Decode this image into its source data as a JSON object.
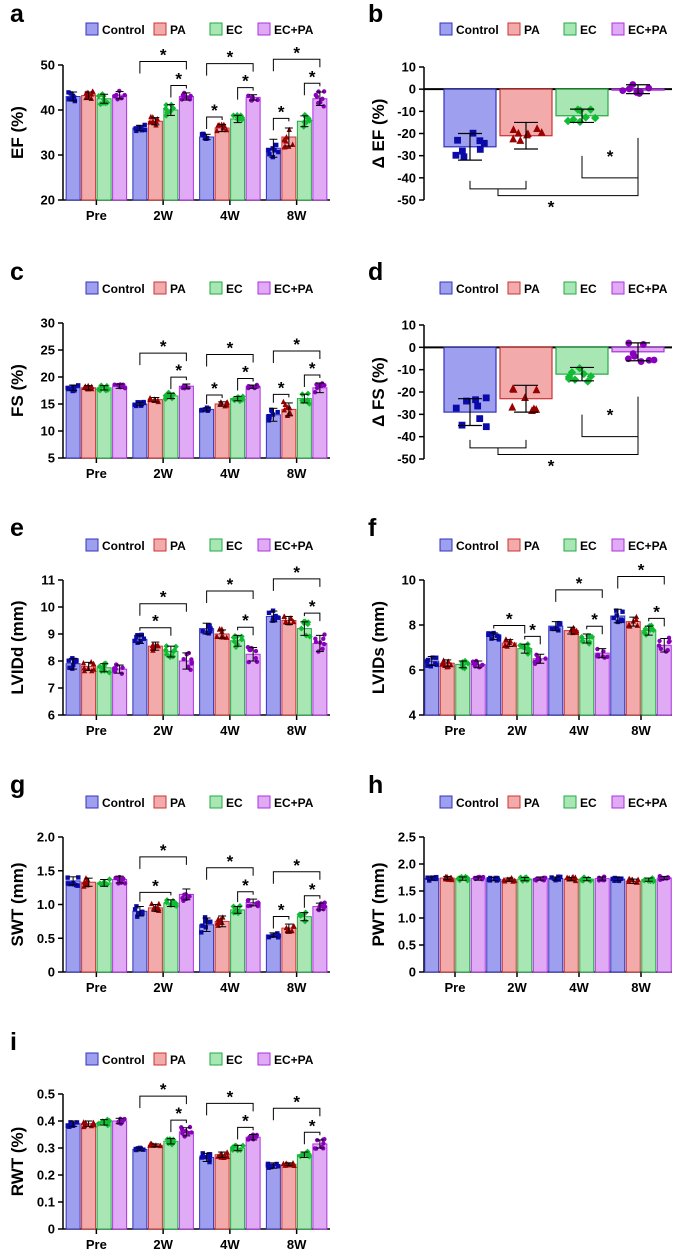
{
  "colors": {
    "Control": {
      "fill": "#9f9ff0",
      "stroke": "#3333bb",
      "marker": "#0a0aa8"
    },
    "PA": {
      "fill": "#f2aaaa",
      "stroke": "#cc3333",
      "marker": "#990000"
    },
    "EC": {
      "fill": "#a8e6b3",
      "stroke": "#22aa44",
      "marker": "#11bb33"
    },
    "EC+PA": {
      "fill": "#e1aaf5",
      "stroke": "#aa33dd",
      "marker": "#8800bb"
    }
  },
  "chart_data": [
    {
      "panel": "a",
      "type": "bar",
      "ylabel": "EF (%)",
      "categories": [
        "Pre",
        "2W",
        "4W",
        "8W"
      ],
      "legend": [
        "Control",
        "PA",
        "EC",
        "EC+PA"
      ],
      "ylim": [
        20,
        50
      ],
      "yticks": [
        20,
        30,
        40,
        50
      ],
      "ytick_labels": [
        "20",
        "30",
        "40",
        "50"
      ],
      "series": [
        {
          "name": "Control",
          "values": [
            43,
            36,
            34,
            31.5
          ],
          "errors": [
            1.0,
            0.6,
            0.6,
            2.0
          ]
        },
        {
          "name": "PA",
          "values": [
            43.2,
            37.5,
            36,
            34
          ],
          "errors": [
            0.8,
            0.8,
            0.8,
            2.0
          ]
        },
        {
          "name": "EC",
          "values": [
            42.5,
            40,
            38,
            37.5
          ],
          "errors": [
            1.0,
            1.2,
            0.8,
            1.2
          ]
        },
        {
          "name": "EC+PA",
          "values": [
            43.3,
            43,
            42.8,
            42.5
          ],
          "errors": [
            0.8,
            0.8,
            0.6,
            1.5
          ]
        }
      ],
      "stars": "*"
    },
    {
      "panel": "b",
      "type": "bar",
      "ylabel": "Δ EF (%)",
      "categories": [
        ""
      ],
      "legend": [
        "Control",
        "PA",
        "EC",
        "EC+PA"
      ],
      "ylim": [
        -50,
        10
      ],
      "yticks": [
        -50,
        -40,
        -30,
        -20,
        -10,
        0,
        10
      ],
      "ytick_labels": [
        "-50",
        "-40",
        "-30",
        "-20",
        "-10",
        "0",
        "10"
      ],
      "series": [
        {
          "name": "Control",
          "values": [
            -26
          ],
          "errors": [
            6
          ]
        },
        {
          "name": "PA",
          "values": [
            -21
          ],
          "errors": [
            6
          ]
        },
        {
          "name": "EC",
          "values": [
            -12
          ],
          "errors": [
            3
          ]
        },
        {
          "name": "EC+PA",
          "values": [
            0
          ],
          "errors": [
            2
          ]
        }
      ],
      "stars": "*"
    },
    {
      "panel": "c",
      "type": "bar",
      "ylabel": "FS (%)",
      "categories": [
        "Pre",
        "2W",
        "4W",
        "8W"
      ],
      "legend": [
        "Control",
        "PA",
        "EC",
        "EC+PA"
      ],
      "ylim": [
        5,
        30
      ],
      "yticks": [
        5,
        10,
        15,
        20,
        25,
        30
      ],
      "ytick_labels": [
        "5",
        "10",
        "15",
        "20",
        "25",
        "30"
      ],
      "series": [
        {
          "name": "Control",
          "values": [
            18,
            15,
            14,
            13
          ],
          "errors": [
            0.5,
            0.3,
            0.3,
            1.2
          ]
        },
        {
          "name": "PA",
          "values": [
            18,
            15.8,
            15,
            14
          ],
          "errors": [
            0.4,
            0.4,
            0.4,
            1.2
          ]
        },
        {
          "name": "EC",
          "values": [
            18,
            16.5,
            16,
            16
          ],
          "errors": [
            0.4,
            0.5,
            0.4,
            0.8
          ]
        },
        {
          "name": "EC+PA",
          "values": [
            18.3,
            18.3,
            18.2,
            18
          ],
          "errors": [
            0.4,
            0.4,
            0.3,
            0.9
          ]
        }
      ],
      "stars": "*"
    },
    {
      "panel": "d",
      "type": "bar",
      "ylabel": "Δ FS (%)",
      "categories": [
        ""
      ],
      "legend": [
        "Control",
        "PA",
        "EC",
        "EC+PA"
      ],
      "ylim": [
        -50,
        10
      ],
      "yticks": [
        -50,
        -40,
        -30,
        -20,
        -10,
        0,
        10
      ],
      "ytick_labels": [
        "-50",
        "-40",
        "-30",
        "-20",
        "-10",
        "0",
        "10"
      ],
      "series": [
        {
          "name": "Control",
          "values": [
            -29
          ],
          "errors": [
            6
          ]
        },
        {
          "name": "PA",
          "values": [
            -23
          ],
          "errors": [
            6
          ]
        },
        {
          "name": "EC",
          "values": [
            -12
          ],
          "errors": [
            3
          ]
        },
        {
          "name": "EC+PA",
          "values": [
            -2
          ],
          "errors": [
            4
          ]
        }
      ],
      "stars": "*"
    },
    {
      "panel": "e",
      "type": "bar",
      "ylabel": "LVIDd (mm)",
      "categories": [
        "Pre",
        "2W",
        "4W",
        "8W"
      ],
      "legend": [
        "Control",
        "PA",
        "EC",
        "EC+PA"
      ],
      "ylim": [
        6,
        11
      ],
      "yticks": [
        6,
        7,
        8,
        9,
        10,
        11
      ],
      "ytick_labels": [
        "6",
        "7",
        "8",
        "9",
        "10",
        "11"
      ],
      "series": [
        {
          "name": "Control",
          "values": [
            7.9,
            8.8,
            9.2,
            9.65
          ],
          "errors": [
            0.2,
            0.15,
            0.2,
            0.2
          ]
        },
        {
          "name": "PA",
          "values": [
            7.8,
            8.55,
            9.0,
            9.5
          ],
          "errors": [
            0.15,
            0.15,
            0.15,
            0.15
          ]
        },
        {
          "name": "EC",
          "values": [
            7.75,
            8.35,
            8.75,
            9.2
          ],
          "errors": [
            0.15,
            0.2,
            0.2,
            0.25
          ]
        },
        {
          "name": "EC+PA",
          "values": [
            7.7,
            8.0,
            8.25,
            8.65
          ],
          "errors": [
            0.15,
            0.3,
            0.25,
            0.3
          ]
        }
      ],
      "stars": "*"
    },
    {
      "panel": "f",
      "type": "bar",
      "ylabel": "LVIDs (mm)",
      "categories": [
        "Pre",
        "2W",
        "4W",
        "8W"
      ],
      "legend": [
        "Control",
        "PA",
        "EC",
        "EC+PA"
      ],
      "ylim": [
        4,
        10
      ],
      "yticks": [
        4,
        6,
        8,
        10
      ],
      "ytick_labels": [
        "4",
        "6",
        "8",
        "10"
      ],
      "series": [
        {
          "name": "Control",
          "values": [
            6.4,
            7.5,
            7.95,
            8.4
          ],
          "errors": [
            0.2,
            0.15,
            0.2,
            0.3
          ]
        },
        {
          "name": "PA",
          "values": [
            6.3,
            7.2,
            7.75,
            8.15
          ],
          "errors": [
            0.15,
            0.15,
            0.15,
            0.2
          ]
        },
        {
          "name": "EC",
          "values": [
            6.25,
            6.95,
            7.4,
            7.75
          ],
          "errors": [
            0.15,
            0.2,
            0.2,
            0.2
          ]
        },
        {
          "name": "EC+PA",
          "values": [
            6.25,
            6.5,
            6.75,
            7.1
          ],
          "errors": [
            0.15,
            0.2,
            0.2,
            0.3
          ]
        }
      ],
      "stars": "*"
    },
    {
      "panel": "g",
      "type": "bar",
      "ylabel": "SWT (mm)",
      "categories": [
        "Pre",
        "2W",
        "4W",
        "8W"
      ],
      "legend": [
        "Control",
        "PA",
        "EC",
        "EC+PA"
      ],
      "ylim": [
        0,
        2.0
      ],
      "yticks": [
        0,
        0.5,
        1.0,
        1.5,
        2.0
      ],
      "ytick_labels": [
        "0",
        "0.5",
        "1.0",
        "1.5",
        "2.0"
      ],
      "series": [
        {
          "name": "Control",
          "values": [
            1.35,
            0.9,
            0.7,
            0.55
          ],
          "errors": [
            0.06,
            0.07,
            0.1,
            0.03
          ]
        },
        {
          "name": "PA",
          "values": [
            1.33,
            0.95,
            0.75,
            0.65
          ],
          "errors": [
            0.06,
            0.05,
            0.08,
            0.06
          ]
        },
        {
          "name": "EC",
          "values": [
            1.32,
            1.02,
            0.92,
            0.82
          ],
          "errors": [
            0.05,
            0.05,
            0.05,
            0.06
          ]
        },
        {
          "name": "EC+PA",
          "values": [
            1.37,
            1.15,
            1.03,
            0.97
          ],
          "errors": [
            0.05,
            0.08,
            0.05,
            0.05
          ]
        }
      ],
      "stars": "*"
    },
    {
      "panel": "h",
      "type": "bar",
      "ylabel": "PWT (mm)",
      "categories": [
        "Pre",
        "2W",
        "4W",
        "8W"
      ],
      "legend": [
        "Control",
        "PA",
        "EC",
        "EC+PA"
      ],
      "ylim": [
        0,
        2.5
      ],
      "yticks": [
        0,
        0.5,
        1.0,
        1.5,
        2.0,
        2.5
      ],
      "ytick_labels": [
        "0",
        "0.5",
        "1.0",
        "1.5",
        "2.0",
        "2.5"
      ],
      "series": [
        {
          "name": "Control",
          "values": [
            1.73,
            1.72,
            1.73,
            1.72
          ],
          "errors": [
            0.03,
            0.03,
            0.03,
            0.03
          ]
        },
        {
          "name": "PA",
          "values": [
            1.74,
            1.71,
            1.72,
            1.68
          ],
          "errors": [
            0.03,
            0.03,
            0.03,
            0.04
          ]
        },
        {
          "name": "EC",
          "values": [
            1.73,
            1.72,
            1.72,
            1.71
          ],
          "errors": [
            0.03,
            0.03,
            0.03,
            0.03
          ]
        },
        {
          "name": "EC+PA",
          "values": [
            1.73,
            1.73,
            1.73,
            1.74
          ],
          "errors": [
            0.03,
            0.03,
            0.03,
            0.03
          ]
        }
      ],
      "stars": "*"
    },
    {
      "panel": "i",
      "type": "bar",
      "ylabel": "RWT (%)",
      "categories": [
        "Pre",
        "2W",
        "4W",
        "8W"
      ],
      "legend": [
        "Control",
        "PA",
        "EC",
        "EC+PA"
      ],
      "ylim": [
        0,
        0.5
      ],
      "yticks": [
        0,
        0.1,
        0.2,
        0.3,
        0.4,
        0.5
      ],
      "ytick_labels": [
        "0",
        "0.1",
        "0.2",
        "0.3",
        "0.4",
        "0.5"
      ],
      "series": [
        {
          "name": "Control",
          "values": [
            0.39,
            0.295,
            0.265,
            0.235
          ],
          "errors": [
            0.01,
            0.005,
            0.015,
            0.01
          ]
        },
        {
          "name": "PA",
          "values": [
            0.39,
            0.31,
            0.275,
            0.24
          ],
          "errors": [
            0.01,
            0.005,
            0.01,
            0.005
          ]
        },
        {
          "name": "EC",
          "values": [
            0.395,
            0.325,
            0.3,
            0.275
          ],
          "errors": [
            0.01,
            0.01,
            0.01,
            0.01
          ]
        },
        {
          "name": "EC+PA",
          "values": [
            0.4,
            0.36,
            0.34,
            0.315
          ],
          "errors": [
            0.01,
            0.015,
            0.01,
            0.015
          ]
        }
      ],
      "stars": "*"
    }
  ]
}
